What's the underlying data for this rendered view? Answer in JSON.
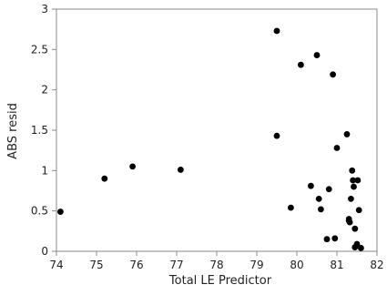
{
  "chart_data": {
    "type": "scatter",
    "xlabel": "Total LE Predictor",
    "ylabel": "ABS resid",
    "xlim": [
      74,
      82
    ],
    "ylim": [
      0,
      3
    ],
    "x_ticks": [
      74,
      75,
      76,
      77,
      78,
      79,
      80,
      81,
      82
    ],
    "y_ticks": [
      0,
      0.5,
      1,
      1.5,
      2,
      2.5,
      3
    ],
    "y_tick_labels": [
      "0",
      "0.5",
      "1",
      "1.5",
      "2",
      "2.5",
      "3"
    ],
    "grid": false,
    "marker_color": "#000000",
    "points": [
      {
        "x": 74.1,
        "y": 0.49
      },
      {
        "x": 75.2,
        "y": 0.9
      },
      {
        "x": 75.9,
        "y": 1.05
      },
      {
        "x": 77.1,
        "y": 1.01
      },
      {
        "x": 79.5,
        "y": 2.73
      },
      {
        "x": 79.5,
        "y": 1.43
      },
      {
        "x": 79.85,
        "y": 0.54
      },
      {
        "x": 80.1,
        "y": 2.31
      },
      {
        "x": 80.35,
        "y": 0.81
      },
      {
        "x": 80.5,
        "y": 2.43
      },
      {
        "x": 80.55,
        "y": 0.65
      },
      {
        "x": 80.6,
        "y": 0.52
      },
      {
        "x": 80.75,
        "y": 0.15
      },
      {
        "x": 80.8,
        "y": 0.77
      },
      {
        "x": 80.9,
        "y": 2.19
      },
      {
        "x": 80.95,
        "y": 0.16
      },
      {
        "x": 81.0,
        "y": 1.28
      },
      {
        "x": 81.25,
        "y": 1.45
      },
      {
        "x": 81.3,
        "y": 0.38
      },
      {
        "x": 81.3,
        "y": 0.4
      },
      {
        "x": 81.32,
        "y": 0.36
      },
      {
        "x": 81.35,
        "y": 0.65
      },
      {
        "x": 81.38,
        "y": 1.0
      },
      {
        "x": 81.4,
        "y": 0.88
      },
      {
        "x": 81.42,
        "y": 0.8
      },
      {
        "x": 81.45,
        "y": 0.28
      },
      {
        "x": 81.45,
        "y": 0.05
      },
      {
        "x": 81.5,
        "y": 0.09
      },
      {
        "x": 81.52,
        "y": 0.88
      },
      {
        "x": 81.55,
        "y": 0.51
      },
      {
        "x": 81.6,
        "y": 0.04
      }
    ]
  }
}
